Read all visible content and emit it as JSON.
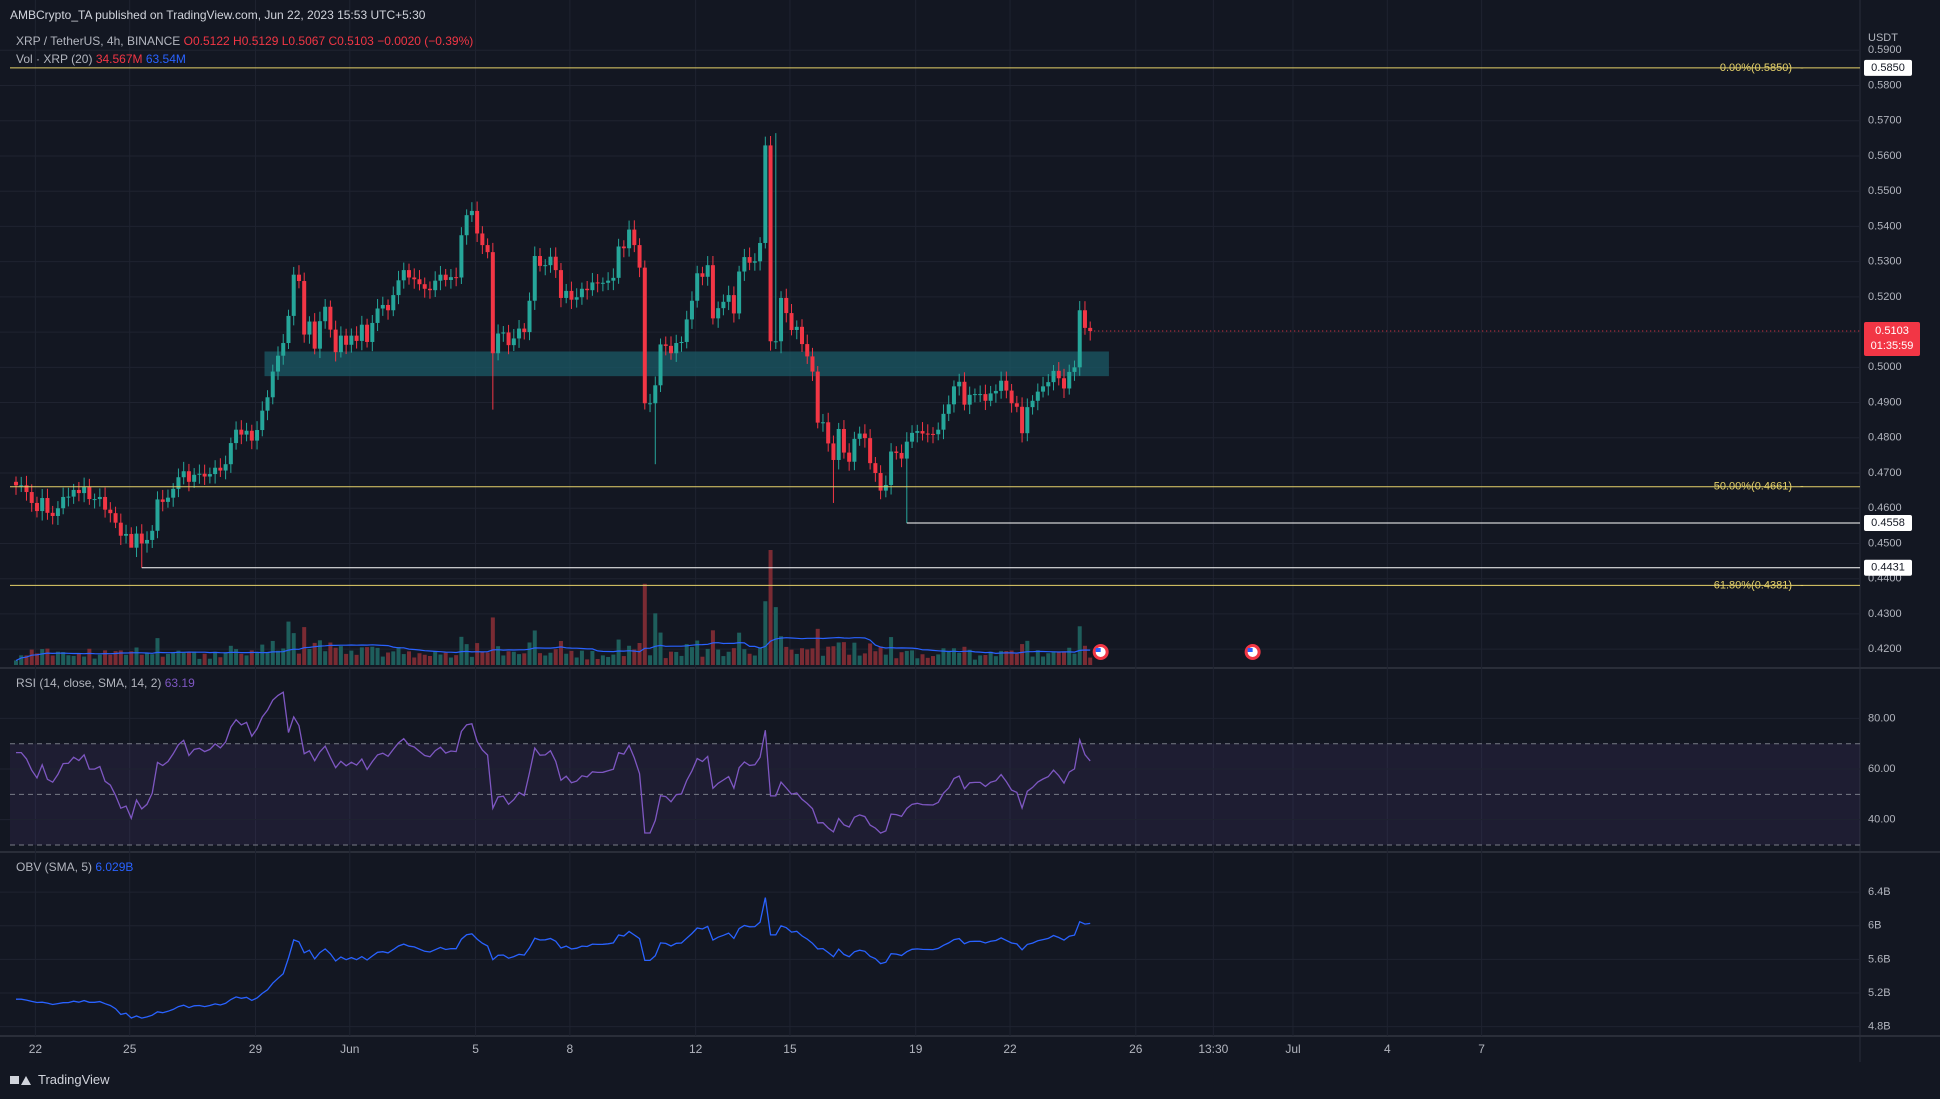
{
  "publisher_line": "AMBCrypto_TA published on TradingView.com, Jun 22, 2023 15:53 UTC+5:30",
  "symbol_line": {
    "name": "XRP / TetherUS, 4h, BINANCE",
    "o": "O0.5122",
    "h": "H0.5129",
    "l": "L0.5067",
    "c": "C0.5103",
    "chg": "−0.0020 (−0.39%)"
  },
  "volume_line": {
    "label": "Vol · XRP (20)",
    "v1": "34.567M",
    "v2": "63.54M"
  },
  "rsi_line": {
    "label": "RSI (14, close, SMA, 14, 2)",
    "value": "63.19"
  },
  "obv_line": {
    "label": "OBV (SMA, 5)",
    "value": "6.029B"
  },
  "brand": "TradingView",
  "colors": {
    "background": "#131722",
    "grid": "#1f2330",
    "up": "#26a69a",
    "down": "#f23645",
    "fib": "#e6d26a",
    "support": "#ffffff",
    "zone": "#1b5a66",
    "rsi": "#7e57c2",
    "obv": "#2962ff",
    "vol_ma": "#2962ff",
    "vol_up": "#1e5e5c",
    "vol_down": "#7a2b33"
  },
  "chart_data": [
    {
      "type": "candlestick",
      "title": "XRP / TetherUS, 4h, BINANCE",
      "ylabel": "USDT",
      "ylim": [
        0.4155,
        0.5915
      ],
      "yticks": [
        "0.5900",
        "0.5800",
        "0.5700",
        "0.5600",
        "0.5500",
        "0.5400",
        "0.5300",
        "0.5200",
        "0.5100",
        "0.5000",
        "0.4900",
        "0.4800",
        "0.4700",
        "0.4600",
        "0.4500",
        "0.4400",
        "0.4300",
        "0.4200"
      ],
      "x_tick_labels": [
        "22",
        "25",
        "29",
        "Jun",
        "5",
        "8",
        "12",
        "15",
        "19",
        "22",
        "26",
        "13:30",
        "Jul",
        "4",
        "7"
      ],
      "x_ticks": [
        {
          "date": "May 22",
          "bar": 3.7
        },
        {
          "date": "May 25",
          "bar": 21.7
        },
        {
          "date": "May 29",
          "bar": 45.7
        },
        {
          "date": "Jun 1",
          "bar": 63.7
        },
        {
          "date": "Jun 5",
          "bar": 87.7
        },
        {
          "date": "Jun 8",
          "bar": 105.7
        },
        {
          "date": "Jun 12",
          "bar": 129.7
        },
        {
          "date": "Jun 15",
          "bar": 147.7
        },
        {
          "date": "Jun 19",
          "bar": 171.7
        },
        {
          "date": "Jun 22",
          "bar": 189.7
        },
        {
          "date": "Jun 26",
          "bar": 213.7
        },
        {
          "date": "Jun 28 13:30",
          "bar": 228.5
        },
        {
          "date": "Jul 1",
          "bar": 243.7
        },
        {
          "date": "Jul 4",
          "bar": 261.7
        },
        {
          "date": "Jul 7",
          "bar": 279.7
        }
      ],
      "closes": [
        0.4665,
        0.4665,
        0.4646,
        0.4615,
        0.4592,
        0.4629,
        0.4587,
        0.4578,
        0.46,
        0.4632,
        0.4633,
        0.4652,
        0.4643,
        0.466,
        0.4626,
        0.4626,
        0.4632,
        0.4596,
        0.4586,
        0.4559,
        0.4522,
        0.4527,
        0.4488,
        0.4528,
        0.45,
        0.451,
        0.4536,
        0.4625,
        0.4618,
        0.463,
        0.4655,
        0.4688,
        0.4705,
        0.4675,
        0.4695,
        0.4698,
        0.469,
        0.4697,
        0.4715,
        0.4707,
        0.4725,
        0.4785,
        0.4823,
        0.4809,
        0.482,
        0.4792,
        0.4822,
        0.4877,
        0.4915,
        0.4988,
        0.5033,
        0.5069,
        0.5146,
        0.5263,
        0.5245,
        0.5093,
        0.513,
        0.5053,
        0.5131,
        0.5172,
        0.5107,
        0.5043,
        0.509,
        0.5064,
        0.509,
        0.5075,
        0.5121,
        0.5072,
        0.5126,
        0.5167,
        0.5177,
        0.5162,
        0.5205,
        0.5247,
        0.5276,
        0.5255,
        0.525,
        0.5236,
        0.5223,
        0.5219,
        0.5246,
        0.5263,
        0.5248,
        0.5256,
        0.5255,
        0.5375,
        0.5432,
        0.5444,
        0.538,
        0.5347,
        0.5327,
        0.504,
        0.5096,
        0.5099,
        0.5063,
        0.5082,
        0.511,
        0.51,
        0.5189,
        0.5316,
        0.5288,
        0.529,
        0.5314,
        0.5276,
        0.5197,
        0.5217,
        0.5192,
        0.5199,
        0.5223,
        0.5219,
        0.5241,
        0.5239,
        0.524,
        0.5246,
        0.5254,
        0.5343,
        0.5338,
        0.5391,
        0.5347,
        0.5283,
        0.4898,
        0.4898,
        0.4949,
        0.5065,
        0.5061,
        0.504,
        0.5069,
        0.5072,
        0.5136,
        0.5189,
        0.5267,
        0.5257,
        0.529,
        0.5139,
        0.5168,
        0.5186,
        0.5205,
        0.5153,
        0.5272,
        0.5313,
        0.5297,
        0.5301,
        0.5353,
        0.563,
        0.5074,
        0.5074,
        0.5197,
        0.5154,
        0.5106,
        0.5115,
        0.5066,
        0.5031,
        0.4988,
        0.4843,
        0.4844,
        0.4784,
        0.4737,
        0.4825,
        0.4758,
        0.4732,
        0.4797,
        0.4812,
        0.4799,
        0.4728,
        0.47,
        0.465,
        0.4666,
        0.4761,
        0.4757,
        0.4741,
        0.4789,
        0.4814,
        0.4819,
        0.4812,
        0.4811,
        0.481,
        0.4823,
        0.4868,
        0.4895,
        0.4946,
        0.4959,
        0.4894,
        0.4922,
        0.4924,
        0.4924,
        0.4905,
        0.4926,
        0.4933,
        0.4962,
        0.4934,
        0.4898,
        0.4888,
        0.4813,
        0.4887,
        0.4905,
        0.4931,
        0.4946,
        0.4958,
        0.499,
        0.4969,
        0.494,
        0.4987,
        0.5,
        0.5162,
        0.5112,
        0.5103
      ],
      "annotations": [
        {
          "type": "fib",
          "label": "0.00%(0.5850)",
          "value": 0.585
        },
        {
          "type": "fib",
          "label": "50.00%(0.4661)",
          "value": 0.4661
        },
        {
          "type": "fib",
          "label": "61.80%(0.4381)",
          "value": 0.4381
        },
        {
          "type": "support",
          "label": "0.4558",
          "value": 0.4558
        },
        {
          "type": "support",
          "label": "0.4431",
          "value": 0.4431
        },
        {
          "type": "zone",
          "from": 0.4975,
          "to": 0.5045,
          "bar_from": 48,
          "bar_to": 208
        }
      ],
      "last_price": {
        "value": "0.5103",
        "countdown": "01:35:59"
      },
      "volume_ma": "63.54M"
    },
    {
      "type": "line",
      "title": "RSI (14, close, SMA, 14, 2)",
      "ylim": [
        28,
        92
      ],
      "yticks": [
        "80.00",
        "60.00",
        "40.00"
      ],
      "bands": [
        30,
        50,
        70
      ],
      "values": [
        66.46,
        66.46,
        64.0,
        59.53,
        56.48,
        61.66,
        55.94,
        54.8,
        57.87,
        62.13,
        62.25,
        64.65,
        63.35,
        65.6,
        59.98,
        59.98,
        60.99,
        55.13,
        53.63,
        49.58,
        44.5,
        45.36,
        40.53,
        47.76,
        44.22,
        46.05,
        50.49,
        62.59,
        61.39,
        62.97,
        66.0,
        69.61,
        71.34,
        65.33,
        67.8,
        68.16,
        66.88,
        67.76,
        69.92,
        68.34,
        70.67,
        76.56,
        79.48,
        77.48,
        78.4,
        72.97,
        75.89,
        80.53,
        83.23,
        87.18,
        89.07,
        90.35,
        74.42,
        80.57,
        77.16,
        66.03,
        67.16,
        63.26,
        66.78,
        69.03,
        64.57,
        60.53,
        63.04,
        61.26,
        62.65,
        61.53,
        63.96,
        59.81,
        62.93,
        65.59,
        66.26,
        65.0,
        67.73,
        70.32,
        71.96,
        69.4,
        68.7,
        66.97,
        65.35,
        64.82,
        67.21,
        68.61,
        66.3,
        67.1,
        66.88,
        74.87,
        77.42,
        77.85,
        70.93,
        67.49,
        65.48,
        44.51,
        48.95,
        49.24,
        46.07,
        47.91,
        50.7,
        49.54,
        58.56,
        68.24,
        65.44,
        65.59,
        67.19,
        63.06,
        55.55,
        57.14,
        54.6,
        55.2,
        57.32,
        56.88,
        58.9,
        58.66,
        58.7,
        59.27,
        59.94,
        66.45,
        65.87,
        69.32,
        64.4,
        58.13,
        34.73,
        34.73,
        39.69,
        49.44,
        49.08,
        47.06,
        49.85,
        50.16,
        55.45,
        59.27,
        64.11,
        62.98,
        64.98,
        52.36,
        54.35,
        55.66,
        56.98,
        52.42,
        60.51,
        62.77,
        61.43,
        61.66,
        64.61,
        75.31,
        49.36,
        49.36,
        54.84,
        52.48,
        50.08,
        50.53,
        48.04,
        46.38,
        44.35,
        38.69,
        38.78,
        36.71,
        35.17,
        40.43,
        37.95,
        37.07,
        40.97,
        41.87,
        41.21,
        37.84,
        36.65,
        34.68,
        35.53,
        42.2,
        41.98,
        41.29,
        44.4,
        46.06,
        46.44,
        45.92,
        45.86,
        45.78,
        46.79,
        50.43,
        52.55,
        56.25,
        57.23,
        52.19,
        54.54,
        54.7,
        54.7,
        53.11,
        54.79,
        55.37,
        57.78,
        55.02,
        51.65,
        50.76,
        44.58,
        51.19,
        52.72,
        54.85,
        56.04,
        57.0,
        59.57,
        57.36,
        54.42,
        58.79,
        60.03,
        71.51,
        65.63,
        63.19
      ]
    },
    {
      "type": "line",
      "title": "OBV (SMA, 5)",
      "ylim": [
        4.76,
        6.64
      ],
      "yticks": [
        "6.4B",
        "6B",
        "5.6B",
        "5.2B",
        "4.8B"
      ],
      "values": [
        5.126,
        5.126,
        5.116,
        5.1,
        5.087,
        5.091,
        5.08,
        5.064,
        5.074,
        5.085,
        5.086,
        5.103,
        5.091,
        5.11,
        5.089,
        5.089,
        5.098,
        5.073,
        5.051,
        5.013,
        4.946,
        4.96,
        4.903,
        4.927,
        4.901,
        4.916,
        4.936,
        4.976,
        4.966,
        4.983,
        5.005,
        5.038,
        5.055,
        5.027,
        5.048,
        5.051,
        5.038,
        5.052,
        5.07,
        5.058,
        5.078,
        5.123,
        5.154,
        5.137,
        5.149,
        5.112,
        5.141,
        5.195,
        5.238,
        5.317,
        5.375,
        5.43,
        5.617,
        5.832,
        5.808,
        5.678,
        5.71,
        5.606,
        5.681,
        5.725,
        5.667,
        5.581,
        5.629,
        5.596,
        5.621,
        5.597,
        5.633,
        5.593,
        5.64,
        5.684,
        5.692,
        5.677,
        5.717,
        5.759,
        5.782,
        5.757,
        5.749,
        5.723,
        5.696,
        5.688,
        5.716,
        5.743,
        5.718,
        5.729,
        5.727,
        5.84,
        5.894,
        5.905,
        5.842,
        5.793,
        5.759,
        5.596,
        5.649,
        5.653,
        5.614,
        5.633,
        5.661,
        5.651,
        5.738,
        5.852,
        5.831,
        5.833,
        5.849,
        5.817,
        5.736,
        5.758,
        5.724,
        5.733,
        5.758,
        5.753,
        5.782,
        5.779,
        5.78,
        5.786,
        5.796,
        5.89,
        5.879,
        5.932,
        5.89,
        5.848,
        5.588,
        5.588,
        5.643,
        5.796,
        5.791,
        5.76,
        5.792,
        5.795,
        5.852,
        5.908,
        5.974,
        5.962,
        5.993,
        5.83,
        5.864,
        5.887,
        5.913,
        5.85,
        5.966,
        6.003,
        5.988,
        5.99,
        6.044,
        6.335,
        5.892,
        5.892,
        6.0,
        5.977,
        5.925,
        5.935,
        5.88,
        5.842,
        5.792,
        5.725,
        5.728,
        5.682,
        5.632,
        5.723,
        5.66,
        5.632,
        5.691,
        5.709,
        5.697,
        5.637,
        5.608,
        5.55,
        5.567,
        5.668,
        5.663,
        5.646,
        5.692,
        5.72,
        5.725,
        5.719,
        5.718,
        5.717,
        5.731,
        5.768,
        5.796,
        5.836,
        5.848,
        5.787,
        5.813,
        5.815,
        5.815,
        5.795,
        5.817,
        5.825,
        5.856,
        5.826,
        5.795,
        5.784,
        5.714,
        5.778,
        5.794,
        5.821,
        5.836,
        5.85,
        5.885,
        5.861,
        5.83,
        5.876,
        5.889,
        6.049,
        6.02,
        6.029
      ]
    }
  ]
}
